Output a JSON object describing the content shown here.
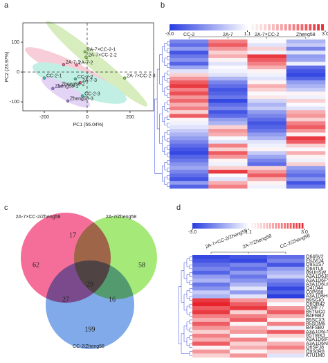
{
  "chart_data": [
    {
      "type": "scatter",
      "panel": "a",
      "xlabel": "PC1 (56.04%)",
      "ylabel": "PC2 (23.97%)",
      "xlim": [
        -300,
        310
      ],
      "ylim": [
        -130,
        165
      ],
      "xticks": [
        -200,
        0,
        200
      ],
      "yticks": [
        -100,
        0,
        100
      ],
      "series": [
        {
          "name": "2A-7×CC-2",
          "color": "#7ac943",
          "labels": [
            "2A-7×CC-2-1",
            "2A-7×CC-2-2",
            "2A-7×CC-2-3"
          ],
          "x": [
            -10,
            -5,
            175
          ],
          "values": [
            68,
            50,
            -20
          ]
        },
        {
          "name": "2A-7",
          "color": "#e8607f",
          "labels": [
            "2A-7-1",
            "2A-7-2",
            "2A-7-3"
          ],
          "x": [
            -110,
            -50,
            -32
          ],
          "values": [
            25,
            24,
            -35
          ]
        },
        {
          "name": "CC-2",
          "color": "#3cbfa8",
          "labels": [
            "CC-2-1",
            "CC-2-2",
            "CC-2-3"
          ],
          "x": [
            -200,
            -55,
            -22
          ],
          "values": [
            -20,
            -23,
            -80
          ]
        },
        {
          "name": "Zheng58",
          "color": "#9b6fd6",
          "labels": [
            "Zheng58-1",
            "Zheng58-2",
            "Zheng58-3"
          ],
          "x": [
            -160,
            -130,
            -90
          ],
          "values": [
            -55,
            -48,
            -97
          ]
        }
      ]
    },
    {
      "type": "heatmap",
      "panel": "b",
      "columns": [
        "CC-2",
        "2A-7",
        "2A-7×CC-2",
        "Zheng58"
      ],
      "zlim": [
        -3,
        3
      ],
      "zcenter": 1.1,
      "zticks": [
        {
          "value": -3,
          "label": "-3.0"
        },
        1.1,
        {
          "value": 3,
          "label": "3.0"
        }
      ],
      "values": [
        [
          -1.5,
          2.2,
          1.0,
          -0.5
        ],
        [
          -2.0,
          2.5,
          0.5,
          0.0
        ],
        [
          -1.0,
          2.0,
          1.5,
          -1.5
        ],
        [
          -2.5,
          1.5,
          0.8,
          0.5
        ],
        [
          -1.8,
          1.8,
          2.8,
          -1.0
        ],
        [
          -1.2,
          1.2,
          2.5,
          -0.8
        ],
        [
          -2.2,
          0.5,
          2.2,
          0.8
        ],
        [
          -0.8,
          1.0,
          1.8,
          -2.0
        ],
        [
          0.5,
          0.8,
          1.2,
          -2.5
        ],
        [
          1.5,
          0.5,
          0.8,
          -2.8
        ],
        [
          2.0,
          -0.5,
          0.5,
          -2.2
        ],
        [
          2.5,
          -1.5,
          1.2,
          -1.0
        ],
        [
          2.8,
          -2.0,
          1.8,
          -0.5
        ],
        [
          2.2,
          -2.5,
          1.5,
          0.0
        ],
        [
          2.6,
          -2.2,
          1.0,
          1.2
        ],
        [
          2.0,
          -1.8,
          1.3,
          0.8
        ],
        [
          2.4,
          -2.8,
          0.2,
          1.5
        ],
        [
          1.8,
          -2.0,
          -0.5,
          1.0
        ],
        [
          2.2,
          -1.5,
          0.0,
          0.5
        ],
        [
          1.5,
          -2.5,
          -1.0,
          1.8
        ],
        [
          2.5,
          -2.0,
          -1.5,
          2.0
        ],
        [
          1.2,
          -1.0,
          -2.0,
          1.5
        ],
        [
          0.8,
          -0.5,
          -2.5,
          2.2
        ],
        [
          0.5,
          1.5,
          -2.2,
          2.5
        ],
        [
          0.0,
          2.0,
          -1.8,
          2.0
        ],
        [
          -0.5,
          1.8,
          -1.0,
          1.2
        ],
        [
          -1.0,
          1.0,
          -0.5,
          2.8
        ],
        [
          -1.5,
          0.5,
          0.5,
          2.5
        ],
        [
          -2.0,
          2.2,
          0.8,
          1.5
        ],
        [
          -2.5,
          1.5,
          1.2,
          1.0
        ],
        [
          -2.8,
          2.5,
          0.0,
          1.8
        ],
        [
          -2.2,
          2.0,
          -0.8,
          1.2
        ],
        [
          -1.8,
          1.2,
          -1.5,
          0.8
        ],
        [
          -1.2,
          0.8,
          -2.0,
          1.5
        ],
        [
          -0.8,
          1.5,
          1.5,
          -1.0
        ],
        [
          -1.5,
          2.8,
          2.0,
          -1.5
        ],
        [
          -2.0,
          1.0,
          2.5,
          -2.0
        ],
        [
          -2.5,
          0.5,
          1.8,
          -1.2
        ],
        [
          -1.0,
          1.8,
          1.2,
          -2.5
        ],
        [
          -2.2,
          2.2,
          0.8,
          -1.8
        ]
      ]
    },
    {
      "type": "venn",
      "panel": "c",
      "sets": [
        {
          "name": "2A-7×CC-2/Zheng58",
          "color": "#f0306e"
        },
        {
          "name": "2A-7/Zheng58",
          "color": "#7fe040"
        },
        {
          "name": "CC-2/Zheng58",
          "color": "#4a86e0"
        }
      ],
      "values": [
        62,
        17,
        58,
        29,
        27,
        16,
        199
      ]
    },
    {
      "type": "heatmap",
      "panel": "d",
      "columns": [
        "2A-7×CC-2/Zheng58",
        "2A-7/Zheng58",
        "CC-2/Zheng58"
      ],
      "rows": [
        "Q646V2",
        "E9JVD4",
        "Q9S1S7",
        "Q64TL6",
        "B9UH5W",
        "A3A1D6JP87",
        "A3A1D6FYD1",
        "A3A1D6UNB8",
        "Q41044",
        "C0P698",
        "A3A1D6HSE7",
        "B9SGIO",
        "Q6QR42",
        "C0HF77",
        "B5TMG0",
        "B4FRB2",
        "B5SCX3",
        "B5SDM6",
        "B4FSB0",
        "A3A1D6LN23",
        "B5TWK3",
        "A3A1D6IF23",
        "A3A1D6NPE8",
        "Q6SPJ8",
        "Q9S0R8",
        "K7U1M0"
      ],
      "zlim": [
        -3,
        3
      ],
      "zcenter": 1.1,
      "zticks": [
        {
          "value": -3,
          "label": "-3.0"
        },
        1.1,
        {
          "value": 3,
          "label": "3.0"
        }
      ],
      "values": [
        [
          -2.8,
          -2.5,
          -2.0
        ],
        [
          -2.5,
          -2.8,
          -1.5
        ],
        [
          -2.0,
          -1.5,
          -2.5
        ],
        [
          -1.5,
          -2.0,
          -1.0
        ],
        [
          -2.2,
          -1.0,
          -0.5
        ],
        [
          -1.0,
          -1.8,
          0.0
        ],
        [
          -0.5,
          -1.2,
          -1.5
        ],
        [
          -1.8,
          -0.5,
          -2.0
        ],
        [
          -1.2,
          0.5,
          -2.8
        ],
        [
          0.0,
          -1.0,
          -2.2
        ],
        [
          -0.5,
          0.5,
          -3.0
        ],
        [
          2.8,
          2.0,
          1.5
        ],
        [
          3.0,
          2.5,
          1.0
        ],
        [
          2.5,
          2.8,
          2.0
        ],
        [
          2.8,
          1.5,
          2.5
        ],
        [
          2.2,
          2.2,
          1.8
        ],
        [
          1.8,
          2.5,
          1.2
        ],
        [
          2.5,
          1.2,
          2.2
        ],
        [
          2.0,
          1.8,
          0.8
        ],
        [
          1.5,
          2.0,
          2.5
        ],
        [
          2.2,
          1.0,
          1.5
        ],
        [
          1.8,
          2.2,
          1.0
        ],
        [
          2.5,
          1.5,
          1.8
        ],
        [
          1.2,
          1.8,
          2.2
        ],
        [
          2.0,
          1.2,
          1.5
        ],
        [
          1.5,
          2.0,
          0.5
        ]
      ]
    }
  ]
}
